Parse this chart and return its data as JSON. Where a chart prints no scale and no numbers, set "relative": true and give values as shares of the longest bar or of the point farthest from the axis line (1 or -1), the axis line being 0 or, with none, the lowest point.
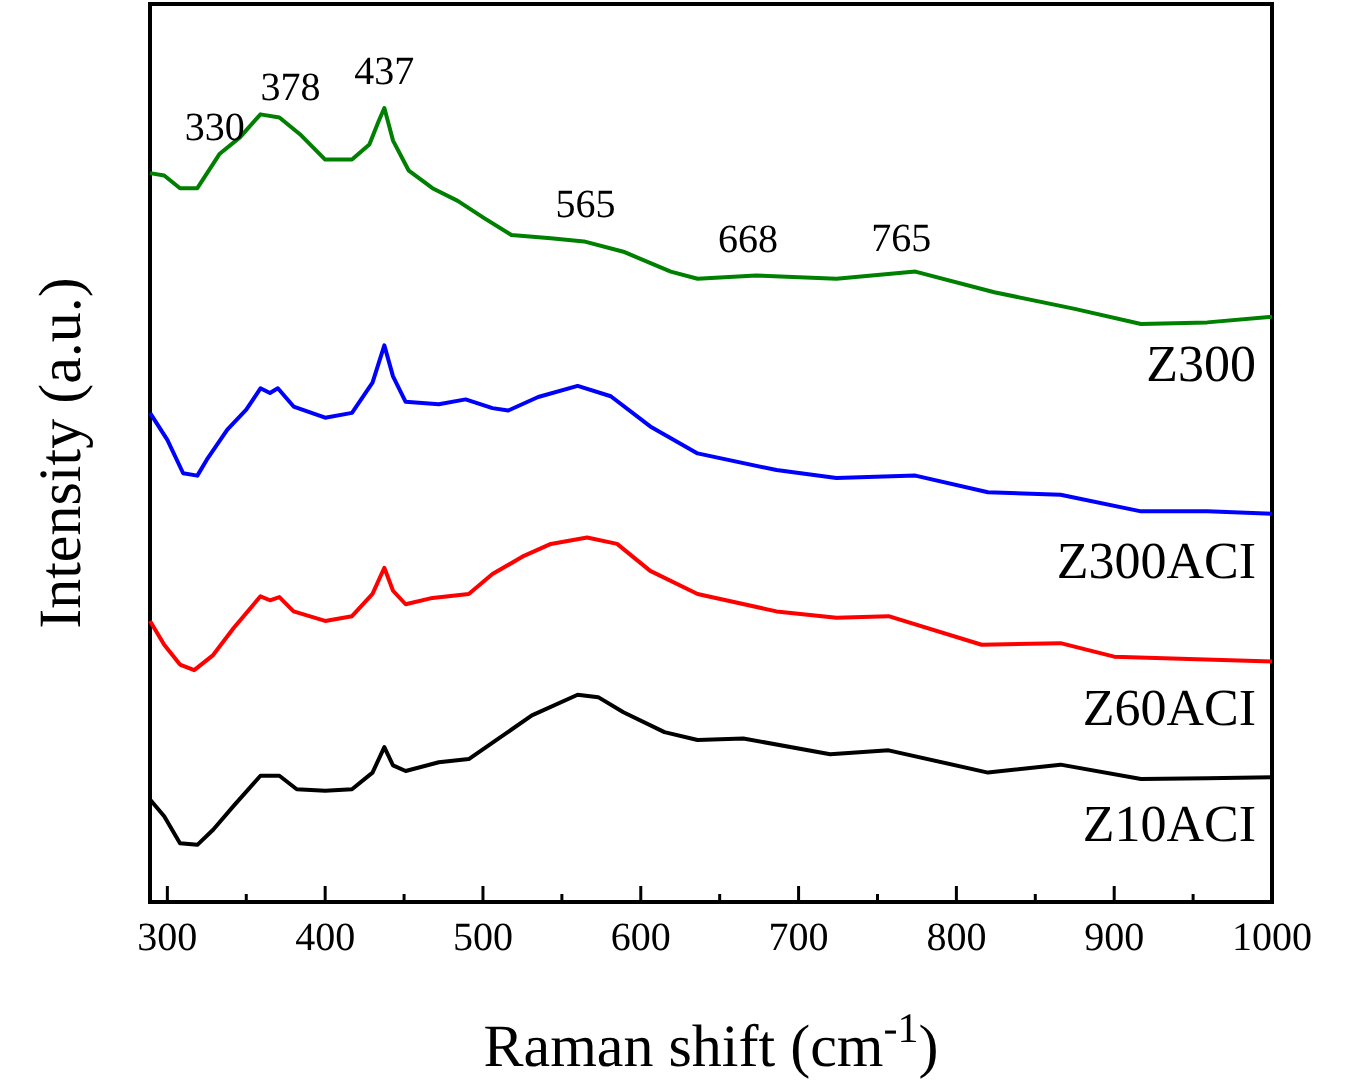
{
  "chart_data": {
    "type": "line",
    "relative": true,
    "xlabel": "Raman shift (cm$^{-1}$)",
    "ylabel": "Intensity (a.u.)",
    "xlim": [
      289,
      1000
    ],
    "xticks": [
      300,
      {
        "value": 350,
        "label": null
      },
      400,
      {
        "value": 450,
        "label": null
      },
      500,
      {
        "value": 550,
        "label": null
      },
      600,
      {
        "value": 650,
        "label": null
      },
      700,
      {
        "value": 750,
        "label": null
      },
      800,
      {
        "value": 850,
        "label": null
      },
      900,
      {
        "value": 950,
        "label": null
      },
      1000
    ],
    "grid": false,
    "line_style": "solid",
    "marker": "none",
    "series": [
      {
        "name": "Z300",
        "color": "#008000",
        "x": [
          289,
          298,
          308,
          319,
          333,
          346,
          359,
          371,
          384,
          400,
          417,
          428,
          434,
          437.5,
          443,
          453,
          468,
          484,
          501,
          518,
          543,
          564,
          589,
          619,
          636,
          673,
          724,
          774,
          824,
          875,
          917,
          959,
          1000
        ],
        "values": [
          0.918,
          0.915,
          0.899,
          0.899,
          0.942,
          0.963,
          0.992,
          0.988,
          0.967,
          0.935,
          0.935,
          0.954,
          0.984,
          1,
          0.959,
          0.921,
          0.899,
          0.883,
          0.861,
          0.84,
          0.836,
          0.832,
          0.819,
          0.794,
          0.785,
          0.789,
          0.785,
          0.794,
          0.768,
          0.747,
          0.728,
          0.73,
          0.737
        ]
      },
      {
        "name": "Z300ACI",
        "color": "#0000ff",
        "x": [
          289,
          300,
          310,
          319,
          325,
          338,
          350,
          359,
          365,
          370,
          380,
          400,
          417,
          430,
          437.5,
          443,
          451,
          472,
          489,
          506,
          516,
          535,
          560,
          581,
          606,
          636,
          686,
          724,
          774,
          820,
          866,
          917,
          959,
          1000
        ],
        "values": [
          0.616,
          0.582,
          0.54,
          0.537,
          0.557,
          0.595,
          0.62,
          0.647,
          0.641,
          0.647,
          0.624,
          0.61,
          0.616,
          0.654,
          0.701,
          0.662,
          0.63,
          0.627,
          0.633,
          0.622,
          0.619,
          0.636,
          0.65,
          0.637,
          0.599,
          0.565,
          0.544,
          0.534,
          0.537,
          0.516,
          0.513,
          0.492,
          0.492,
          0.489
        ]
      },
      {
        "name": "Z60ACI",
        "color": "#ff0000",
        "x": [
          289,
          298,
          308,
          317,
          329,
          342,
          359,
          365,
          371,
          380,
          400,
          417,
          430,
          437.5,
          443,
          451,
          468,
          491,
          506,
          526,
          543,
          566,
          585,
          606,
          636,
          686,
          724,
          757,
          816,
          866,
          900,
          1000
        ],
        "values": [
          0.354,
          0.324,
          0.299,
          0.292,
          0.311,
          0.345,
          0.385,
          0.38,
          0.384,
          0.366,
          0.354,
          0.36,
          0.388,
          0.421,
          0.392,
          0.375,
          0.383,
          0.388,
          0.413,
          0.436,
          0.451,
          0.459,
          0.451,
          0.417,
          0.388,
          0.366,
          0.358,
          0.36,
          0.324,
          0.326,
          0.309,
          0.303
        ]
      },
      {
        "name": "Z10ACI",
        "color": "#000000",
        "x": [
          289,
          298,
          308,
          319,
          329,
          342,
          359,
          371,
          382,
          400,
          417,
          430,
          437.5,
          443,
          451,
          472,
          491,
          510,
          531,
          560,
          573,
          589,
          615,
          636,
          665,
          720,
          757,
          820,
          866,
          917,
          959,
          1000
        ],
        "values": [
          0.129,
          0.108,
          0.074,
          0.072,
          0.091,
          0.121,
          0.159,
          0.159,
          0.142,
          0.14,
          0.142,
          0.163,
          0.195,
          0.172,
          0.165,
          0.176,
          0.18,
          0.206,
          0.235,
          0.261,
          0.258,
          0.239,
          0.214,
          0.204,
          0.206,
          0.186,
          0.191,
          0.163,
          0.173,
          0.155,
          0.156,
          0.157
        ]
      }
    ],
    "annotations": [
      {
        "text": "330",
        "x": 330,
        "y": 0.93
      },
      {
        "text": "378",
        "x": 378,
        "y": 0.98
      },
      {
        "text": "437",
        "x": 437.5,
        "y": 1
      },
      {
        "text": "565",
        "x": 565,
        "y": 0.832
      },
      {
        "text": "668",
        "x": 668,
        "y": 0.789
      },
      {
        "text": "765",
        "x": 765,
        "y": 0.79
      }
    ]
  }
}
